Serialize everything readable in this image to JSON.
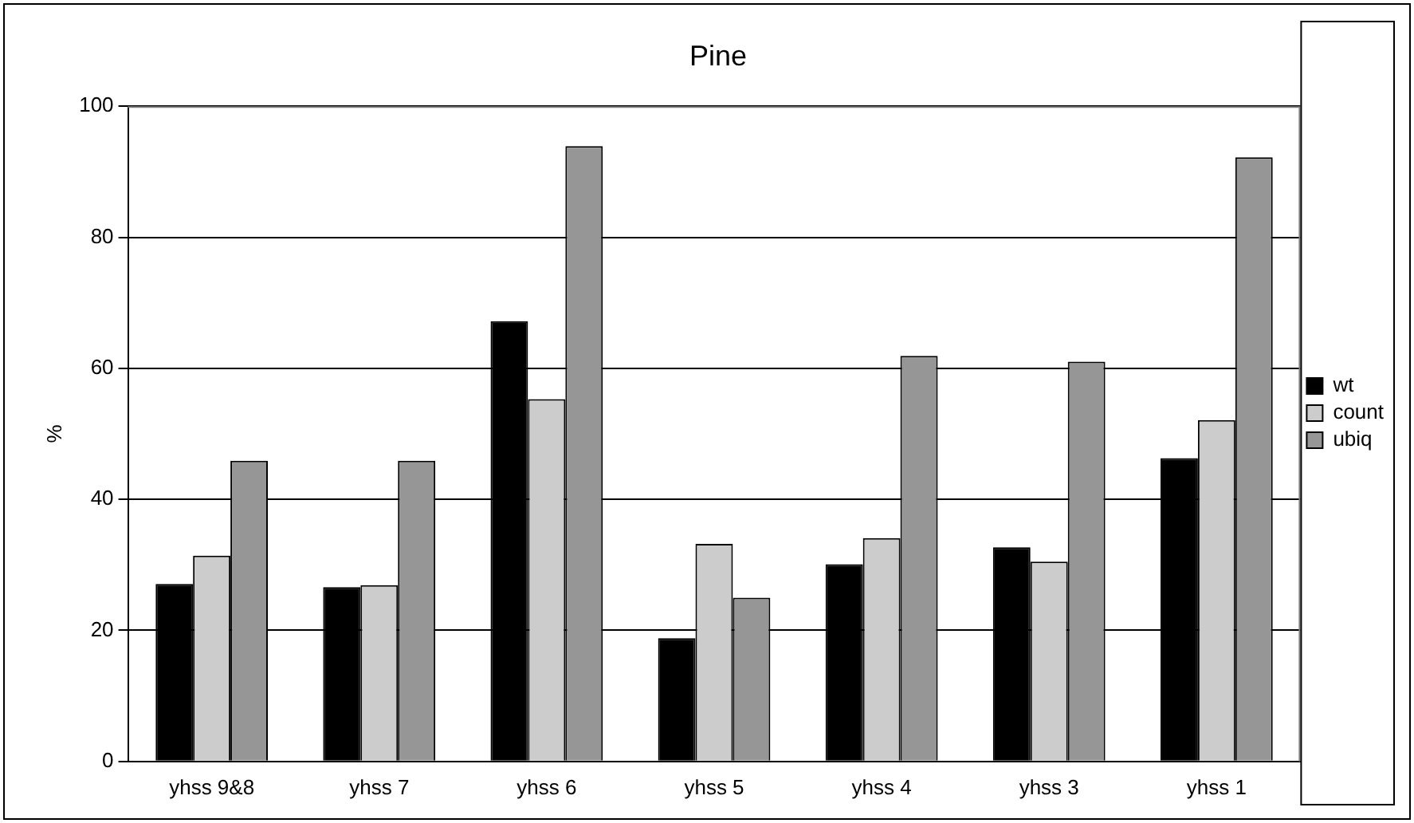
{
  "chart_data": {
    "type": "bar",
    "title": "Pine",
    "ylabel": "%",
    "categories": [
      "yhss 9&8",
      "yhss 7",
      "yhss 6",
      "yhss 5",
      "yhss 4",
      "yhss 3",
      "yhss 1"
    ],
    "series": [
      {
        "name": "wt",
        "color": "#000000",
        "values": [
          27.1,
          26.6,
          67.2,
          18.8,
          30.1,
          32.7,
          46.3
        ]
      },
      {
        "name": "count",
        "color": "#cccccc",
        "values": [
          31.4,
          26.9,
          55.3,
          33.2,
          34.1,
          30.5,
          52.1
        ]
      },
      {
        "name": "ubiq",
        "color": "#969696",
        "values": [
          45.9,
          45.9,
          93.9,
          25.0,
          61.9,
          61.0,
          92.2
        ]
      }
    ],
    "ylim": [
      0,
      100
    ],
    "yticks": [
      0,
      20,
      40,
      60,
      80,
      100
    ],
    "grid": "y",
    "legend": "right"
  }
}
